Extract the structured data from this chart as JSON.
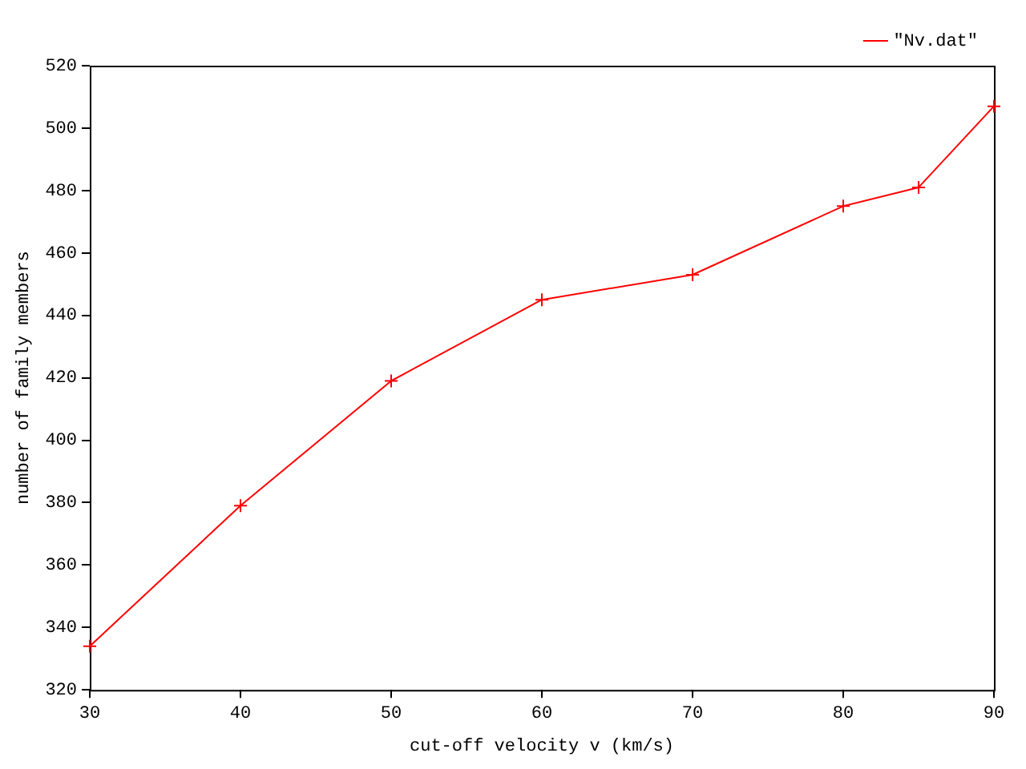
{
  "chart_data": {
    "type": "line",
    "xlabel": "cut-off velocity v (km/s)",
    "ylabel": "number of family members",
    "x": [
      30,
      40,
      50,
      60,
      70,
      80,
      85,
      90
    ],
    "series": [
      {
        "name": "\"Nv.dat\"",
        "color": "#ff0000",
        "values": [
          334,
          379,
          419,
          445,
          453,
          475,
          481,
          507
        ]
      }
    ],
    "xlim": [
      30,
      90
    ],
    "xticks": [
      30,
      40,
      50,
      60,
      70,
      80,
      90
    ],
    "ylim": [
      320,
      520
    ],
    "yticks": [
      320,
      340,
      360,
      380,
      400,
      420,
      440,
      460,
      480,
      500,
      520
    ],
    "grid": false,
    "legend": "top right",
    "marker": "cross",
    "line_style": "solid"
  }
}
